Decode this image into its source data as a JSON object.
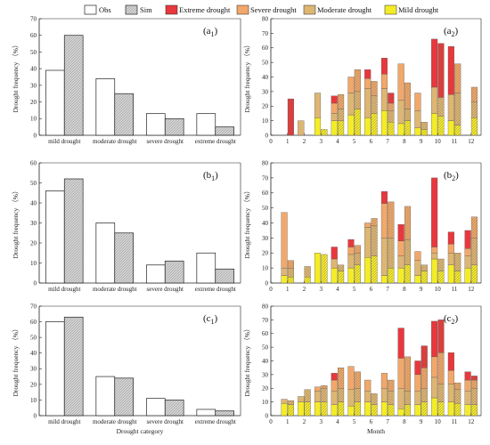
{
  "legend": {
    "obs": "Obs",
    "sim": "Sim",
    "extreme": "Extreme drought",
    "severe": "Severe drought",
    "moderate": "Moderate drought",
    "mild": "Mild drought"
  },
  "colors": {
    "obs": "#ffffff",
    "sim": "#cfcfcf",
    "extreme": "#e8383d",
    "severe": "#f2a86a",
    "moderate": "#deb673",
    "mild": "#f5ec28",
    "axis": "#222222"
  },
  "chart_data": [
    {
      "type": "bar",
      "panel": "a",
      "label": "a",
      "label_sub": "1",
      "categories": [
        "mild drought",
        "moderate drought",
        "severe drought",
        "extreme drought"
      ],
      "series": [
        {
          "name": "Obs",
          "values": [
            39,
            34,
            13,
            13
          ]
        },
        {
          "name": "Sim",
          "values": [
            60,
            25,
            10,
            5
          ]
        }
      ],
      "ylim": [
        0,
        70
      ],
      "yticks": [
        0,
        10,
        20,
        30,
        40,
        50,
        60,
        70
      ],
      "ylabel": "Drought frequency （%）",
      "xlabel": ""
    },
    {
      "type": "bar",
      "panel": "b",
      "label": "b",
      "label_sub": "1",
      "categories": [
        "mild drought",
        "moderate drought",
        "severe drought",
        "extreme drought"
      ],
      "series": [
        {
          "name": "Obs",
          "values": [
            46,
            30,
            9,
            15
          ]
        },
        {
          "name": "Sim",
          "values": [
            52,
            25,
            11,
            7
          ]
        }
      ],
      "ylim": [
        0,
        60
      ],
      "yticks": [
        0,
        10,
        20,
        30,
        40,
        50,
        60
      ],
      "ylabel": "Drought frequency （%）",
      "xlabel": ""
    },
    {
      "type": "bar",
      "panel": "c",
      "label": "c",
      "label_sub": "1",
      "categories": [
        "mild drought",
        "moderate drought",
        "severe drought",
        "extreme drought"
      ],
      "series": [
        {
          "name": "Obs",
          "values": [
            60,
            25,
            11,
            4
          ]
        },
        {
          "name": "Sim",
          "values": [
            63,
            24,
            10,
            3
          ]
        }
      ],
      "ylim": [
        0,
        70
      ],
      "yticks": [
        0,
        10,
        20,
        30,
        40,
        50,
        60,
        70
      ],
      "ylabel": "Drought frequency （%）",
      "xlabel": "Drought category"
    },
    {
      "type": "bar",
      "stacked": true,
      "panel": "a",
      "label": "a",
      "label_sub": "2",
      "x": [
        1,
        2,
        3,
        4,
        5,
        6,
        7,
        8,
        9,
        10,
        11,
        12
      ],
      "pairs": [
        {
          "obs": [
            0,
            0,
            0,
            0
          ],
          "sim": [
            0,
            0,
            0,
            25
          ]
        },
        {
          "obs": [
            0,
            10,
            0,
            0
          ],
          "sim": [
            0,
            0,
            0,
            0
          ]
        },
        {
          "obs": [
            12,
            17,
            0,
            0
          ],
          "sim": [
            4,
            0,
            0,
            0
          ]
        },
        {
          "obs": [
            10,
            5,
            7,
            5
          ],
          "sim": [
            10,
            8,
            10,
            0
          ]
        },
        {
          "obs": [
            14,
            15,
            11,
            0
          ],
          "sim": [
            18,
            12,
            15,
            0
          ]
        },
        {
          "obs": [
            12,
            20,
            7,
            6
          ],
          "sim": [
            15,
            12,
            10,
            0
          ]
        },
        {
          "obs": [
            17,
            15,
            10,
            11
          ],
          "sim": [
            9,
            8,
            5,
            7
          ]
        },
        {
          "obs": [
            8,
            16,
            25,
            0
          ],
          "sim": [
            10,
            8,
            18,
            0
          ]
        },
        {
          "obs": [
            5,
            12,
            12,
            0
          ],
          "sim": [
            4,
            5,
            0,
            0
          ]
        },
        {
          "obs": [
            15,
            18,
            0,
            33
          ],
          "sim": [
            13,
            13,
            0,
            37
          ]
        },
        {
          "obs": [
            10,
            18,
            0,
            33
          ],
          "sim": [
            7,
            22,
            20,
            0
          ]
        },
        {
          "obs": [
            0,
            0,
            0,
            0
          ],
          "sim": [
            12,
            11,
            10,
            0
          ]
        }
      ],
      "ylim": [
        0,
        80
      ],
      "yticks": [
        0,
        10,
        20,
        30,
        40,
        50,
        60,
        70,
        80
      ],
      "ylabel": "Drought frequency （%）",
      "xlabel": ""
    },
    {
      "type": "bar",
      "stacked": true,
      "panel": "b",
      "label": "b",
      "label_sub": "2",
      "x": [
        1,
        2,
        3,
        4,
        5,
        6,
        7,
        8,
        9,
        10,
        11,
        12
      ],
      "pairs": [
        {
          "obs": [
            5,
            5,
            37,
            0
          ],
          "sim": [
            4,
            6,
            5,
            0
          ]
        },
        {
          "obs": [
            0,
            0,
            0,
            0
          ],
          "sim": [
            4,
            7,
            0,
            0
          ]
        },
        {
          "obs": [
            20,
            0,
            0,
            0
          ],
          "sim": [
            19,
            0,
            0,
            0
          ]
        },
        {
          "obs": [
            10,
            6,
            0,
            8
          ],
          "sim": [
            8,
            4,
            0,
            0
          ]
        },
        {
          "obs": [
            10,
            9,
            5,
            5
          ],
          "sim": [
            12,
            8,
            5,
            0
          ]
        },
        {
          "obs": [
            17,
            20,
            3,
            0
          ],
          "sim": [
            18,
            20,
            5,
            0
          ]
        },
        {
          "obs": [
            5,
            25,
            23,
            8
          ],
          "sim": [
            10,
            20,
            24,
            0
          ]
        },
        {
          "obs": [
            10,
            8,
            10,
            11
          ],
          "sim": [
            12,
            17,
            22,
            0
          ]
        },
        {
          "obs": [
            5,
            10,
            6,
            0
          ],
          "sim": [
            8,
            4,
            0,
            0
          ]
        },
        {
          "obs": [
            16,
            4,
            4,
            46
          ],
          "sim": [
            8,
            8,
            0,
            0
          ]
        },
        {
          "obs": [
            12,
            8,
            6,
            8
          ],
          "sim": [
            8,
            12,
            0,
            0
          ]
        },
        {
          "obs": [
            10,
            8,
            5,
            12
          ],
          "sim": [
            12,
            18,
            14,
            0
          ]
        }
      ],
      "ylim": [
        0,
        80
      ],
      "yticks": [
        0,
        10,
        20,
        30,
        40,
        50,
        60,
        70,
        80
      ],
      "ylabel": "Drought frequency （%）",
      "xlabel": ""
    },
    {
      "type": "bar",
      "stacked": true,
      "panel": "c",
      "label": "c",
      "label_sub": "2",
      "x": [
        1,
        2,
        3,
        4,
        5,
        6,
        7,
        8,
        9,
        10,
        11,
        12
      ],
      "pairs": [
        {
          "obs": [
            9,
            3,
            0,
            0
          ],
          "sim": [
            8,
            3,
            0,
            0
          ]
        },
        {
          "obs": [
            10,
            4,
            0,
            0
          ],
          "sim": [
            10,
            9,
            0,
            0
          ]
        },
        {
          "obs": [
            10,
            8,
            3,
            0
          ],
          "sim": [
            10,
            10,
            2,
            0
          ]
        },
        {
          "obs": [
            8,
            10,
            8,
            5
          ],
          "sim": [
            10,
            10,
            15,
            0
          ]
        },
        {
          "obs": [
            7,
            12,
            17,
            0
          ],
          "sim": [
            10,
            10,
            12,
            0
          ]
        },
        {
          "obs": [
            10,
            8,
            8,
            0
          ],
          "sim": [
            8,
            8,
            0,
            0
          ]
        },
        {
          "obs": [
            10,
            10,
            11,
            0
          ],
          "sim": [
            8,
            10,
            8,
            0
          ]
        },
        {
          "obs": [
            5,
            15,
            22,
            22
          ],
          "sim": [
            8,
            10,
            25,
            0
          ]
        },
        {
          "obs": [
            8,
            10,
            12,
            10
          ],
          "sim": [
            10,
            10,
            15,
            16
          ]
        },
        {
          "obs": [
            13,
            15,
            15,
            26
          ],
          "sim": [
            10,
            13,
            23,
            24
          ]
        },
        {
          "obs": [
            10,
            13,
            10,
            13
          ],
          "sim": [
            9,
            10,
            5,
            0
          ]
        },
        {
          "obs": [
            8,
            10,
            8,
            6
          ],
          "sim": [
            8,
            12,
            6,
            3
          ]
        }
      ],
      "ylim": [
        0,
        80
      ],
      "yticks": [
        0,
        10,
        20,
        30,
        40,
        50,
        60,
        70,
        80
      ],
      "ylabel": "Drought frequency （%）",
      "xlabel": "Month"
    }
  ]
}
